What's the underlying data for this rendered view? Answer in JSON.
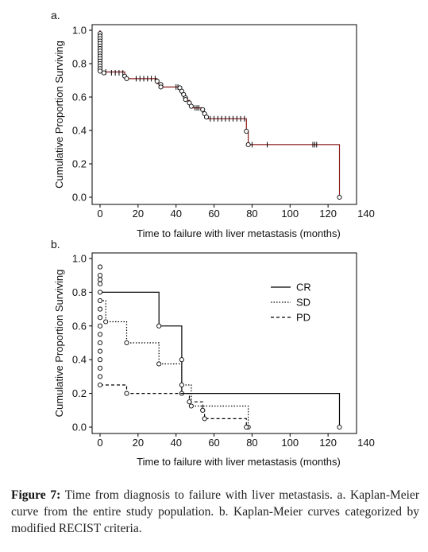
{
  "caption": {
    "label": "Figure 7:",
    "text": " Time from diagnosis to failure with liver metastasis. a. Kaplan-Meier curve from the entire study population. b. Kaplan-Meier curves categorized by modified RECIST criteria."
  },
  "colors": {
    "axis": "#000000",
    "curve_a": "#8b1a1a",
    "curve_b": "#000000"
  },
  "chart_data": [
    {
      "type": "line",
      "panel_label": "a.",
      "title": "",
      "xlabel": "Time to failure with liver metastasis (months)",
      "ylabel": "Cumulative Proportion Surviving",
      "xlim": [
        0,
        140
      ],
      "ylim": [
        0,
        1.0
      ],
      "xticks": [
        "0",
        "20",
        "40",
        "60",
        "80",
        "100",
        "120",
        "140"
      ],
      "yticks": [
        "0.0",
        "0.2",
        "0.4",
        "0.6",
        "0.8",
        "1.0"
      ],
      "grid": false,
      "series": [
        {
          "name": "",
          "line_style": "solid",
          "step": [
            [
              0,
              1.0
            ],
            [
              0,
              0.75
            ],
            [
              13,
              0.75
            ],
            [
              13,
              0.71
            ],
            [
              30,
              0.71
            ],
            [
              30,
              0.68
            ],
            [
              32,
              0.68
            ],
            [
              32,
              0.66
            ],
            [
              42,
              0.66
            ],
            [
              42,
              0.64
            ],
            [
              43,
              0.64
            ],
            [
              43,
              0.62
            ],
            [
              44,
              0.62
            ],
            [
              44,
              0.6
            ],
            [
              45,
              0.6
            ],
            [
              45,
              0.58
            ],
            [
              47,
              0.58
            ],
            [
              47,
              0.555
            ],
            [
              48,
              0.555
            ],
            [
              48,
              0.535
            ],
            [
              54,
              0.535
            ],
            [
              54,
              0.51
            ],
            [
              55,
              0.51
            ],
            [
              55,
              0.49
            ],
            [
              56,
              0.49
            ],
            [
              56,
              0.47
            ],
            [
              77,
              0.47
            ],
            [
              77,
              0.395
            ],
            [
              78,
              0.395
            ],
            [
              78,
              0.315
            ],
            [
              126,
              0.315
            ],
            [
              126,
              0.0
            ]
          ],
          "events": [
            [
              0,
              0.98
            ],
            [
              0,
              0.965
            ],
            [
              0,
              0.95
            ],
            [
              0,
              0.935
            ],
            [
              0,
              0.92
            ],
            [
              0,
              0.905
            ],
            [
              0,
              0.89
            ],
            [
              0,
              0.875
            ],
            [
              0,
              0.86
            ],
            [
              0,
              0.845
            ],
            [
              0,
              0.83
            ],
            [
              0,
              0.815
            ],
            [
              0,
              0.8
            ],
            [
              0,
              0.785
            ],
            [
              0,
              0.77
            ],
            [
              0,
              0.755
            ],
            [
              2,
              0.745
            ],
            [
              13,
              0.725
            ],
            [
              14,
              0.71
            ],
            [
              30,
              0.695
            ],
            [
              32,
              0.675
            ],
            [
              32,
              0.66
            ],
            [
              42,
              0.655
            ],
            [
              43,
              0.635
            ],
            [
              44,
              0.615
            ],
            [
              45,
              0.595
            ],
            [
              45,
              0.585
            ],
            [
              47,
              0.565
            ],
            [
              48,
              0.545
            ],
            [
              54,
              0.525
            ],
            [
              55,
              0.5
            ],
            [
              56,
              0.48
            ],
            [
              77,
              0.395
            ],
            [
              78,
              0.315
            ],
            [
              126,
              0.0
            ]
          ],
          "censored": [
            [
              3,
              0.75
            ],
            [
              6,
              0.745
            ],
            [
              8,
              0.745
            ],
            [
              10,
              0.745
            ],
            [
              12,
              0.745
            ],
            [
              19,
              0.71
            ],
            [
              21,
              0.71
            ],
            [
              23,
              0.71
            ],
            [
              25,
              0.71
            ],
            [
              27,
              0.71
            ],
            [
              29,
              0.71
            ],
            [
              40,
              0.66
            ],
            [
              41,
              0.66
            ],
            [
              50,
              0.535
            ],
            [
              51,
              0.535
            ],
            [
              52,
              0.535
            ],
            [
              58,
              0.47
            ],
            [
              60,
              0.47
            ],
            [
              62,
              0.47
            ],
            [
              64,
              0.47
            ],
            [
              66,
              0.47
            ],
            [
              68,
              0.47
            ],
            [
              70,
              0.47
            ],
            [
              72,
              0.47
            ],
            [
              74,
              0.47
            ],
            [
              76,
              0.47
            ],
            [
              80,
              0.315
            ],
            [
              88,
              0.315
            ],
            [
              112,
              0.315
            ],
            [
              113,
              0.315
            ],
            [
              114,
              0.315
            ]
          ]
        }
      ]
    },
    {
      "type": "line",
      "panel_label": "b.",
      "title": "",
      "xlabel": "Time to failure with liver metastasis (months)",
      "ylabel": "Cumulative Proportion Surviving",
      "xlim": [
        0,
        140
      ],
      "ylim": [
        0,
        1.0
      ],
      "xticks": [
        "0",
        "20",
        "40",
        "60",
        "80",
        "100",
        "120",
        "140"
      ],
      "yticks": [
        "0.0",
        "0.2",
        "0.4",
        "0.6",
        "0.8",
        "1.0"
      ],
      "grid": false,
      "legend": {
        "position": "top-right",
        "entries": [
          "CR",
          "SD",
          "PD"
        ]
      },
      "series": [
        {
          "name": "CR",
          "line_style": "solid",
          "step": [
            [
              0,
              0.8
            ],
            [
              31,
              0.8
            ],
            [
              31,
              0.6
            ],
            [
              43,
              0.6
            ],
            [
              43,
              0.2
            ],
            [
              126,
              0.2
            ],
            [
              126,
              0.0
            ]
          ],
          "events": [
            [
              31,
              0.6
            ],
            [
              43,
              0.4
            ],
            [
              43,
              0.2
            ],
            [
              126,
              0.0
            ]
          ]
        },
        {
          "name": "SD",
          "line_style": "dotted",
          "step": [
            [
              0,
              0.75
            ],
            [
              3,
              0.75
            ],
            [
              3,
              0.625
            ],
            [
              14,
              0.625
            ],
            [
              14,
              0.5
            ],
            [
              31,
              0.5
            ],
            [
              31,
              0.375
            ],
            [
              43,
              0.375
            ],
            [
              43,
              0.25
            ],
            [
              48,
              0.25
            ],
            [
              48,
              0.125
            ],
            [
              78,
              0.125
            ],
            [
              78,
              0.0
            ]
          ],
          "events": [
            [
              0,
              0.875
            ],
            [
              3,
              0.625
            ],
            [
              14,
              0.5
            ],
            [
              31,
              0.375
            ],
            [
              43,
              0.25
            ],
            [
              48,
              0.125
            ],
            [
              78,
              0.0
            ]
          ]
        },
        {
          "name": "PD",
          "line_style": "dashed",
          "step": [
            [
              0,
              0.25
            ],
            [
              14,
              0.25
            ],
            [
              14,
              0.2
            ],
            [
              43,
              0.2
            ],
            [
              43,
              0.2
            ],
            [
              47,
              0.2
            ],
            [
              47,
              0.15
            ],
            [
              54,
              0.15
            ],
            [
              54,
              0.1
            ],
            [
              55,
              0.1
            ],
            [
              55,
              0.05
            ],
            [
              77,
              0.05
            ],
            [
              77,
              0.0
            ]
          ],
          "events": [
            [
              0,
              0.95
            ],
            [
              0,
              0.9
            ],
            [
              0,
              0.85
            ],
            [
              0,
              0.8
            ],
            [
              0,
              0.75
            ],
            [
              0,
              0.7
            ],
            [
              0,
              0.65
            ],
            [
              0,
              0.6
            ],
            [
              0,
              0.55
            ],
            [
              0,
              0.5
            ],
            [
              0,
              0.45
            ],
            [
              0,
              0.4
            ],
            [
              0,
              0.35
            ],
            [
              0,
              0.3
            ],
            [
              0,
              0.25
            ],
            [
              14,
              0.2
            ],
            [
              47,
              0.15
            ],
            [
              54,
              0.1
            ],
            [
              55,
              0.05
            ],
            [
              77,
              0.0
            ]
          ]
        }
      ]
    }
  ]
}
